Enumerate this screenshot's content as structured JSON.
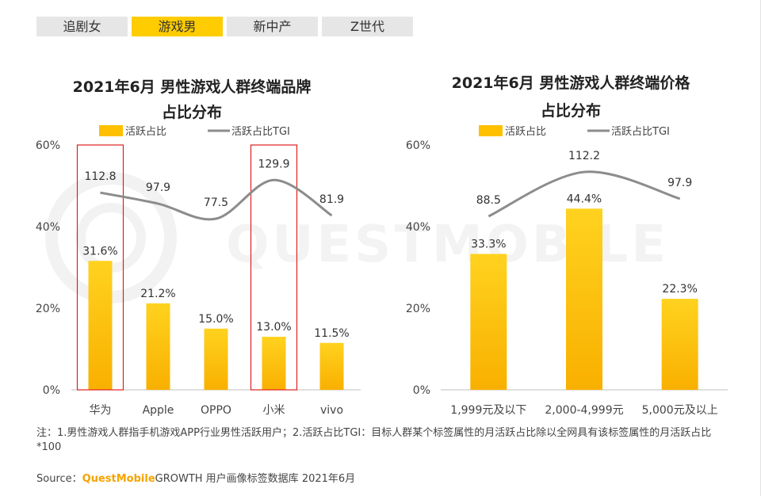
{
  "tabs": [
    {
      "label": "追剧女",
      "active": false
    },
    {
      "label": "游戏男",
      "active": true
    },
    {
      "label": "新中产",
      "active": false
    },
    {
      "label": "Z世代",
      "active": false
    }
  ],
  "colors": {
    "bar_top": "#ffd21f",
    "bar_bottom": "#f9b000",
    "line": "#8c8c8c",
    "highlight_box": "#e02020",
    "tab_active": "#ffcc00"
  },
  "watermark": "QUESTMOBILE",
  "chart_data": [
    {
      "type": "bar",
      "title_line1": "2021年6月 男性游戏人群终端品牌",
      "title_line2": "占比分布",
      "legend": {
        "bar": "活跃占比",
        "line": "活跃占比TGI"
      },
      "categories": [
        "华为",
        "Apple",
        "OPPO",
        "小米",
        "vivo"
      ],
      "series": [
        {
          "name": "活跃占比",
          "values": [
            31.6,
            21.2,
            15.0,
            13.0,
            11.5
          ],
          "labels": [
            "31.6%",
            "21.2%",
            "15.0%",
            "13.0%",
            "11.5%"
          ]
        },
        {
          "name": "活跃占比TGI",
          "values": [
            112.8,
            97.9,
            77.5,
            129.9,
            81.9
          ],
          "labels": [
            "112.8",
            "97.9",
            "77.5",
            "129.9",
            "81.9"
          ]
        }
      ],
      "yticks": [
        "0%",
        "20%",
        "40%",
        "60%"
      ],
      "ylim": [
        0,
        60
      ],
      "highlighted_categories": [
        "华为",
        "小米"
      ]
    },
    {
      "type": "bar",
      "title_line1": "2021年6月 男性游戏人群终端价格",
      "title_line2": "占比分布",
      "legend": {
        "bar": "活跃占比",
        "line": "活跃占比TGI"
      },
      "categories": [
        "1,999元及以下",
        "2,000-4,999元",
        "5,000元及以上"
      ],
      "series": [
        {
          "name": "活跃占比",
          "values": [
            33.3,
            44.4,
            22.3
          ],
          "labels": [
            "33.3%",
            "44.4%",
            "22.3%"
          ]
        },
        {
          "name": "活跃占比TGI",
          "values": [
            88.5,
            112.2,
            97.9
          ],
          "labels": [
            "88.5",
            "112.2",
            "97.9"
          ]
        }
      ],
      "yticks": [
        "0%",
        "20%",
        "40%",
        "60%"
      ],
      "ylim": [
        0,
        60
      ],
      "highlighted_categories": []
    }
  ],
  "note": "注：1.男性游戏人群指手机游戏APP行业男性活跃用户；2.活跃占比TGI：目标人群某个标签属性的月活跃占比除以全网具有该标签属性的月活跃占比*100",
  "source": {
    "prefix": "Source：",
    "brand": "QuestMobile",
    "suffix": "GROWTH 用户画像标签数据库 2021年6月"
  }
}
